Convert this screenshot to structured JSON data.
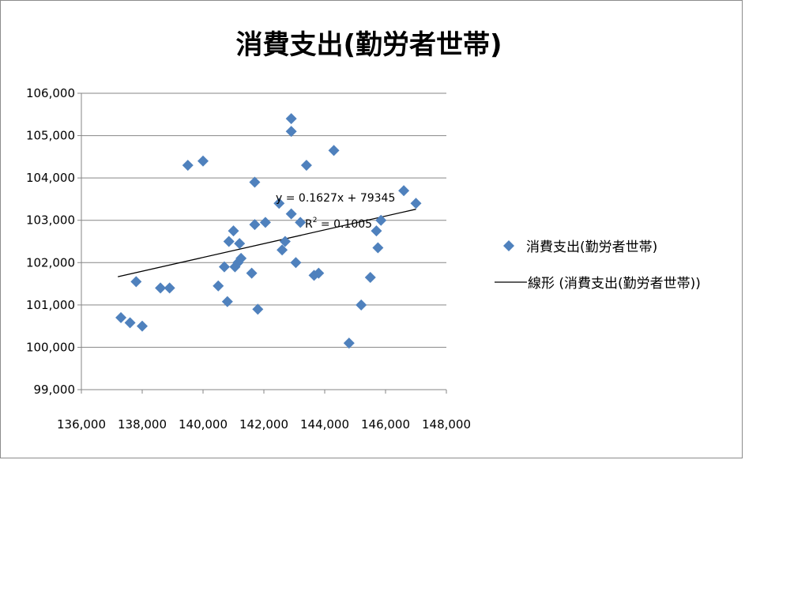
{
  "chart_data": {
    "type": "scatter",
    "title": "消費支出(勤労者世帯)",
    "xlabel": "",
    "ylabel": "",
    "xlim": [
      136000,
      148000
    ],
    "ylim": [
      99000,
      106000
    ],
    "x_ticks": [
      "136,000",
      "138,000",
      "140,000",
      "142,000",
      "144,000",
      "146,000",
      "148,000"
    ],
    "y_ticks": [
      "106,000",
      "105,000",
      "104,000",
      "103,000",
      "102,000",
      "101,000",
      "100,000",
      "99,000"
    ],
    "grid": "horizontal",
    "legend_position": "right",
    "series": [
      {
        "name": "消費支出(勤労者世帯)",
        "color": "#4f81bd",
        "marker": "diamond",
        "points": [
          [
            137300,
            100700
          ],
          [
            137600,
            100580
          ],
          [
            137800,
            101550
          ],
          [
            138000,
            100500
          ],
          [
            138600,
            101400
          ],
          [
            138900,
            101400
          ],
          [
            139500,
            104300
          ],
          [
            140000,
            104400
          ],
          [
            140500,
            101450
          ],
          [
            140700,
            101900
          ],
          [
            140800,
            101080
          ],
          [
            140850,
            102500
          ],
          [
            141000,
            102750
          ],
          [
            141050,
            101900
          ],
          [
            141150,
            102000
          ],
          [
            141200,
            102450
          ],
          [
            141250,
            102100
          ],
          [
            141600,
            101750
          ],
          [
            141700,
            102900
          ],
          [
            141700,
            103900
          ],
          [
            141800,
            100900
          ],
          [
            142050,
            102950
          ],
          [
            142500,
            103400
          ],
          [
            142600,
            102300
          ],
          [
            142700,
            102500
          ],
          [
            142900,
            103150
          ],
          [
            142900,
            105400
          ],
          [
            142900,
            105100
          ],
          [
            143050,
            102000
          ],
          [
            143200,
            102950
          ],
          [
            143400,
            104300
          ],
          [
            143650,
            101700
          ],
          [
            143800,
            101750
          ],
          [
            144300,
            104650
          ],
          [
            144800,
            100100
          ],
          [
            145200,
            101000
          ],
          [
            145500,
            101650
          ],
          [
            145700,
            102750
          ],
          [
            145750,
            102350
          ],
          [
            145850,
            103000
          ],
          [
            146600,
            103700
          ],
          [
            147000,
            103400
          ]
        ]
      }
    ],
    "trendline": {
      "name": "線形 (消費支出(勤労者世帯))",
      "slope": 0.1627,
      "intercept": 79345,
      "x_range": [
        137200,
        147000
      ],
      "equation": "y = 0.1627x + 79345",
      "r2_label": "R",
      "r2_superscript": "2",
      "r2_value": " = 0.1005",
      "color": "#000000"
    }
  }
}
